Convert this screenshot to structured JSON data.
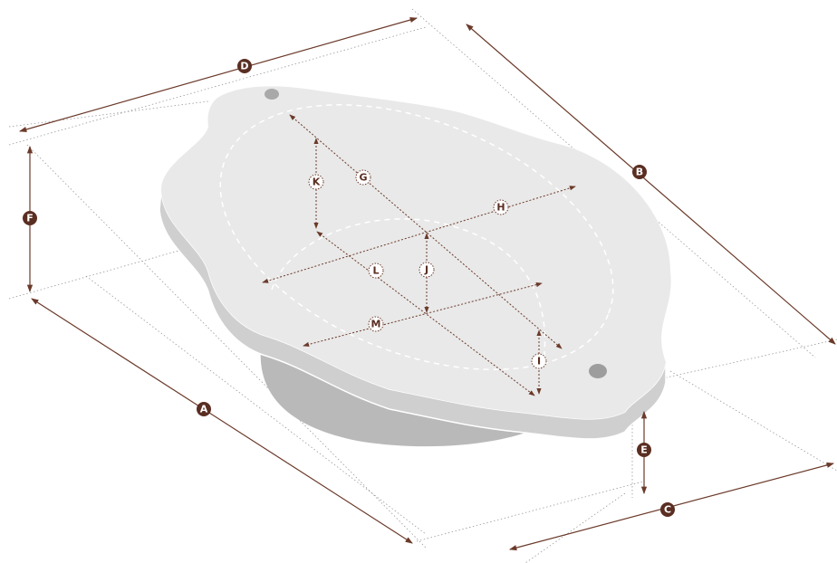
{
  "labels": [
    "A",
    "B",
    "C",
    "D",
    "E",
    "F",
    "G",
    "H",
    "I",
    "J",
    "K",
    "L",
    "M"
  ]
}
